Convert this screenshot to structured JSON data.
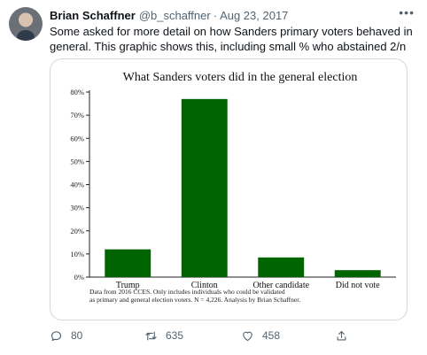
{
  "tweet": {
    "display_name": "Brian Schaffner",
    "handle": "@b_schaffner",
    "separator": "·",
    "date": "Aug 23, 2017",
    "text": "Some asked for more detail on how Sanders primary voters behaved in general. This graphic shows this, including small % who abstained 2/n"
  },
  "actions": {
    "replies": "80",
    "retweets": "635",
    "likes": "458"
  },
  "chart_data": {
    "type": "bar",
    "title": "What Sanders voters did in the general election",
    "categories": [
      "Trump",
      "Clinton",
      "Other candidate",
      "Did not vote"
    ],
    "values": [
      12,
      77,
      8.5,
      3
    ],
    "ylim": [
      0,
      80
    ],
    "yticks": [
      "0%",
      "10%",
      "20%",
      "30%",
      "40%",
      "50%",
      "60%",
      "70%",
      "80%"
    ],
    "xlabel": "",
    "ylabel": "",
    "bar_color": "#006400",
    "note_lines": [
      "Data from 2016 CCES. Only includes individuals who could be validated",
      "as primary and general election voters. N = 4,226. Analysis by Brian Schaffner."
    ]
  }
}
